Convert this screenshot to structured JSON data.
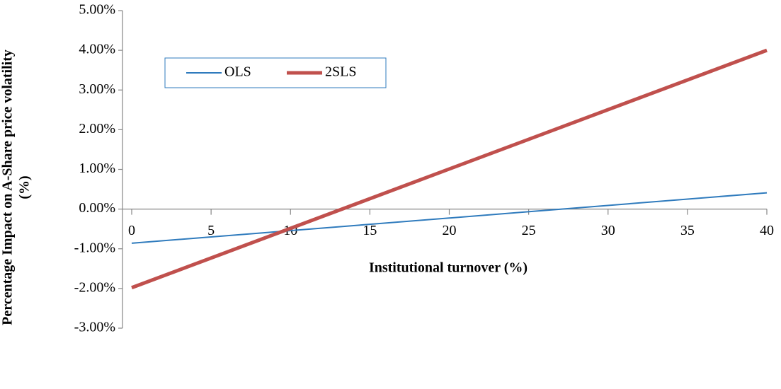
{
  "chart_data": {
    "type": "line",
    "xlabel": "Institutional turnover (%)",
    "ylabel": [
      "Percentage Impact on A-Share price volatility",
      "(%)"
    ],
    "x": [
      0,
      40
    ],
    "series": [
      {
        "name": "OLS",
        "color": "#2f7bbd",
        "width": 2,
        "values": [
          -0.86,
          0.41
        ]
      },
      {
        "name": "2SLS",
        "color": "#c0504d",
        "width": 5,
        "values": [
          -1.98,
          4.0
        ]
      }
    ],
    "xlim": [
      0,
      40
    ],
    "xticks": [
      0,
      5,
      10,
      15,
      20,
      25,
      30,
      35,
      40
    ],
    "ylim": [
      -3,
      5
    ],
    "yticks": [
      {
        "value": -3,
        "label": "-3.00%"
      },
      {
        "value": -2,
        "label": "-2.00%"
      },
      {
        "value": -1,
        "label": "-1.00%"
      },
      {
        "value": 0,
        "label": "0.00%"
      },
      {
        "value": 1,
        "label": "1.00%"
      },
      {
        "value": 2,
        "label": "2.00%"
      },
      {
        "value": 3,
        "label": "3.00%"
      },
      {
        "value": 4,
        "label": "4.00%"
      },
      {
        "value": 5,
        "label": "5.00%"
      }
    ],
    "legend": "upper left",
    "grid": false
  }
}
